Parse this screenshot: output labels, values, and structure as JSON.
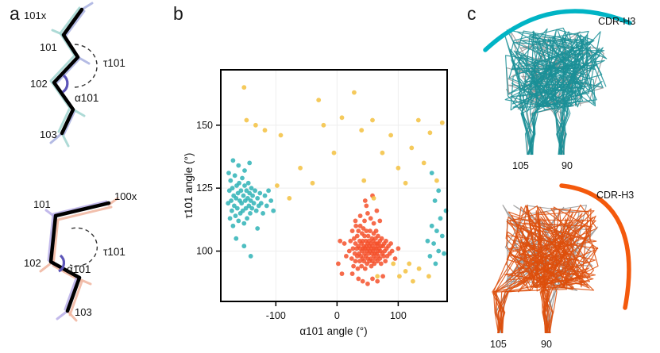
{
  "panel_labels": {
    "a": "a",
    "b": "b",
    "c": "c"
  },
  "panel_a": {
    "top": {
      "residues": {
        "r101x": "101x",
        "r101": "101",
        "r102": "102",
        "r103": "103"
      },
      "angles": {
        "tau": "τ101",
        "alpha": "α101"
      },
      "trace_color_1": "#a8b0e0",
      "trace_color_2": "#9fd4cf"
    },
    "bottom": {
      "residues": {
        "r101": "101",
        "r100x": "100x",
        "r102": "102",
        "r103": "103"
      },
      "angles": {
        "tau": "τ101",
        "alpha": "α101"
      },
      "trace_color_1": "#f0b49e",
      "trace_color_2": "#b9aee8"
    },
    "backbone_color": "#000000",
    "alpha_arc_color": "#5c55b8"
  },
  "panel_c": {
    "top": {
      "title": "CDR-H3",
      "tick_labels": [
        "105",
        "90"
      ],
      "arc_color": "#00b4c5",
      "line_color": "#1a8f96",
      "gray_color": "#8a8a8a"
    },
    "bottom": {
      "title": "CDR-H3",
      "tick_labels": [
        "105",
        "90"
      ],
      "arc_color": "#f4590c",
      "line_color": "#dd4f0c",
      "gray_color": "#8a8a8a"
    }
  },
  "chart_data": {
    "type": "scatter",
    "title": "",
    "xlabel": "α101 angle (°)",
    "ylabel": "τ101 angle (°)",
    "xlim": [
      -190,
      180
    ],
    "ylim": [
      80,
      172
    ],
    "xticks": [
      -100,
      0,
      100
    ],
    "yticks": [
      100,
      125,
      150
    ],
    "grid": true,
    "legend": "none",
    "series": [
      {
        "name": "teal-cluster",
        "color": "#2fb3b6",
        "points": [
          [
            -178,
            119
          ],
          [
            -176,
            124
          ],
          [
            -175,
            113
          ],
          [
            -174,
            128
          ],
          [
            -173,
            120
          ],
          [
            -172,
            116
          ],
          [
            -171,
            125
          ],
          [
            -170,
            110
          ],
          [
            -169,
            122
          ],
          [
            -168,
            118
          ],
          [
            -167,
            130
          ],
          [
            -166,
            114
          ],
          [
            -165,
            121
          ],
          [
            -164,
            126
          ],
          [
            -163,
            117
          ],
          [
            -162,
            123
          ],
          [
            -161,
            112
          ],
          [
            -160,
            127
          ],
          [
            -159,
            120
          ],
          [
            -158,
            115
          ],
          [
            -157,
            124
          ],
          [
            -156,
            119
          ],
          [
            -155,
            129
          ],
          [
            -154,
            116
          ],
          [
            -153,
            122
          ],
          [
            -152,
            111
          ],
          [
            -151,
            126
          ],
          [
            -150,
            120
          ],
          [
            -149,
            117
          ],
          [
            -148,
            124
          ],
          [
            -147,
            113
          ],
          [
            -146,
            121
          ],
          [
            -145,
            127
          ],
          [
            -144,
            118
          ],
          [
            -143,
            123
          ],
          [
            -142,
            115
          ],
          [
            -141,
            120
          ],
          [
            -140,
            125
          ],
          [
            -139,
            117
          ],
          [
            -138,
            122
          ],
          [
            -136,
            119
          ],
          [
            -134,
            124
          ],
          [
            -132,
            116
          ],
          [
            -130,
            121
          ],
          [
            -128,
            118
          ],
          [
            -126,
            123
          ],
          [
            -124,
            119
          ],
          [
            -121,
            115
          ],
          [
            -118,
            122
          ],
          [
            -115,
            118
          ],
          [
            -112,
            124
          ],
          [
            -108,
            120
          ],
          [
            -104,
            116
          ],
          [
            -170,
            136
          ],
          [
            -161,
            134
          ],
          [
            -151,
            132
          ],
          [
            -143,
            135
          ],
          [
            -165,
            105
          ],
          [
            -152,
            102
          ],
          [
            -141,
            98
          ],
          [
            -177,
            131
          ],
          [
            -130,
            109
          ],
          [
            148,
            104
          ],
          [
            152,
            98
          ],
          [
            155,
            110
          ],
          [
            158,
            103
          ],
          [
            161,
            95
          ],
          [
            163,
            108
          ],
          [
            166,
            100
          ],
          [
            169,
            113
          ],
          [
            172,
            106
          ],
          [
            175,
            99
          ],
          [
            178,
            116
          ],
          [
            160,
            120
          ],
          [
            155,
            131
          ],
          [
            166,
            124
          ]
        ]
      },
      {
        "name": "orange-cluster",
        "color": "#f4512c",
        "points": [
          [
            20,
            100
          ],
          [
            22,
            104
          ],
          [
            24,
            97
          ],
          [
            25,
            108
          ],
          [
            26,
            101
          ],
          [
            27,
            94
          ],
          [
            28,
            105
          ],
          [
            29,
            99
          ],
          [
            30,
            103
          ],
          [
            30,
            96
          ],
          [
            31,
            110
          ],
          [
            32,
            101
          ],
          [
            33,
            98
          ],
          [
            33,
            106
          ],
          [
            34,
            93
          ],
          [
            35,
            102
          ],
          [
            35,
            108
          ],
          [
            36,
            99
          ],
          [
            37,
            104
          ],
          [
            37,
            96
          ],
          [
            38,
            101
          ],
          [
            38,
            110
          ],
          [
            39,
            98
          ],
          [
            40,
            103
          ],
          [
            40,
            94
          ],
          [
            41,
            107
          ],
          [
            41,
            100
          ],
          [
            42,
            97
          ],
          [
            42,
            104
          ],
          [
            43,
            101
          ],
          [
            43,
            109
          ],
          [
            44,
            96
          ],
          [
            44,
            102
          ],
          [
            45,
            99
          ],
          [
            45,
            106
          ],
          [
            46,
            93
          ],
          [
            46,
            101
          ],
          [
            47,
            104
          ],
          [
            47,
            98
          ],
          [
            48,
            102
          ],
          [
            48,
            108
          ],
          [
            49,
            95
          ],
          [
            49,
            100
          ],
          [
            50,
            103
          ],
          [
            50,
            97
          ],
          [
            51,
            106
          ],
          [
            51,
            101
          ],
          [
            52,
            99
          ],
          [
            52,
            104
          ],
          [
            53,
            96
          ],
          [
            53,
            102
          ],
          [
            54,
            108
          ],
          [
            54,
            100
          ],
          [
            55,
            97
          ],
          [
            55,
            103
          ],
          [
            56,
            101
          ],
          [
            56,
            94
          ],
          [
            57,
            105
          ],
          [
            57,
            99
          ],
          [
            58,
            102
          ],
          [
            58,
            96
          ],
          [
            59,
            104
          ],
          [
            59,
            100
          ],
          [
            60,
            98
          ],
          [
            60,
            107
          ],
          [
            61,
            101
          ],
          [
            61,
            95
          ],
          [
            62,
            103
          ],
          [
            62,
            99
          ],
          [
            63,
            105
          ],
          [
            63,
            97
          ],
          [
            64,
            101
          ],
          [
            64,
            108
          ],
          [
            65,
            99
          ],
          [
            65,
            103
          ],
          [
            66,
            96
          ],
          [
            66,
            102
          ],
          [
            67,
            100
          ],
          [
            67,
            106
          ],
          [
            68,
            98
          ],
          [
            68,
            103
          ],
          [
            69,
            101
          ],
          [
            70,
            97
          ],
          [
            70,
            104
          ],
          [
            71,
            100
          ],
          [
            72,
            102
          ],
          [
            72,
            95
          ],
          [
            73,
            105
          ],
          [
            74,
            99
          ],
          [
            75,
            102
          ],
          [
            76,
            98
          ],
          [
            77,
            103
          ],
          [
            78,
            100
          ],
          [
            79,
            96
          ],
          [
            80,
            104
          ],
          [
            81,
            101
          ],
          [
            82,
            98
          ],
          [
            84,
            102
          ],
          [
            86,
            99
          ],
          [
            88,
            103
          ],
          [
            90,
            100
          ],
          [
            45,
            112
          ],
          [
            50,
            115
          ],
          [
            55,
            113
          ],
          [
            60,
            111
          ],
          [
            38,
            114
          ],
          [
            65,
            116
          ],
          [
            30,
            112
          ],
          [
            70,
            112
          ],
          [
            48,
            118
          ],
          [
            35,
            89
          ],
          [
            42,
            88
          ],
          [
            50,
            87
          ],
          [
            58,
            89
          ],
          [
            66,
            88
          ],
          [
            25,
            91
          ],
          [
            75,
            90
          ],
          [
            15,
            98
          ],
          [
            12,
            103
          ],
          [
            95,
            97
          ],
          [
            100,
            101
          ],
          [
            46,
            120
          ],
          [
            58,
            122
          ],
          [
            2,
            95
          ],
          [
            8,
            91
          ],
          [
            5,
            104
          ]
        ]
      },
      {
        "name": "yellow-scatter",
        "color": "#f3c13f",
        "points": [
          [
            -152,
            165
          ],
          [
            -148,
            152
          ],
          [
            -133,
            150
          ],
          [
            -118,
            148
          ],
          [
            -92,
            146
          ],
          [
            -60,
            133
          ],
          [
            -40,
            127
          ],
          [
            -22,
            150
          ],
          [
            -5,
            139
          ],
          [
            8,
            153
          ],
          [
            28,
            163
          ],
          [
            40,
            148
          ],
          [
            58,
            152
          ],
          [
            74,
            139
          ],
          [
            88,
            146
          ],
          [
            100,
            133
          ],
          [
            112,
            127
          ],
          [
            122,
            141
          ],
          [
            133,
            152
          ],
          [
            142,
            135
          ],
          [
            152,
            147
          ],
          [
            163,
            128
          ],
          [
            172,
            151
          ],
          [
            60,
            121
          ],
          [
            92,
            95
          ],
          [
            102,
            90
          ],
          [
            112,
            92
          ],
          [
            124,
            88
          ],
          [
            134,
            93
          ],
          [
            66,
            90
          ],
          [
            -98,
            126
          ],
          [
            -78,
            121
          ],
          [
            44,
            128
          ],
          [
            150,
            90
          ],
          [
            118,
            95
          ],
          [
            -30,
            160
          ]
        ]
      }
    ]
  }
}
